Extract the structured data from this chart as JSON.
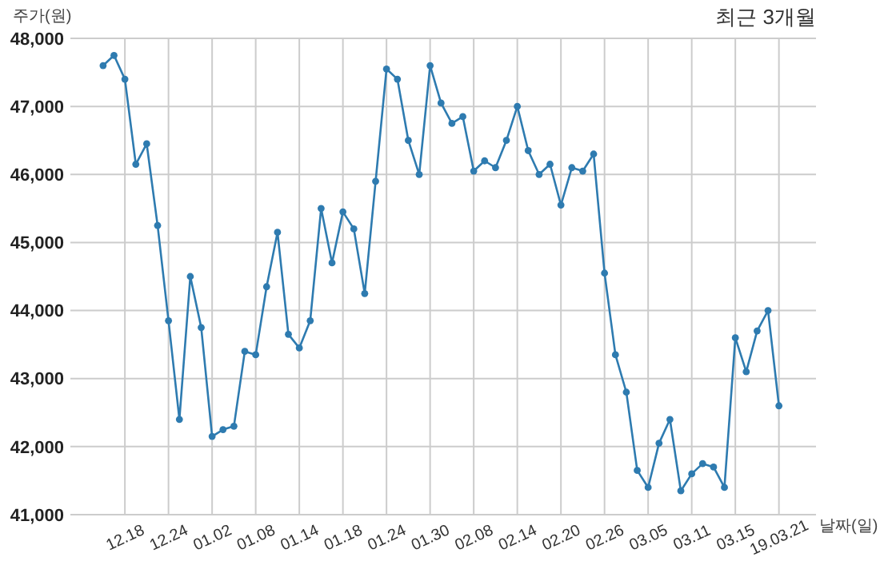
{
  "chart_data": {
    "type": "line",
    "title": "최근 3개월",
    "ylabel": "주가(원)",
    "xlabel": "날짜(일)",
    "categories": [
      null,
      null,
      "12.18",
      null,
      null,
      null,
      "12.24",
      null,
      null,
      null,
      "01.02",
      null,
      null,
      null,
      "01.08",
      null,
      null,
      null,
      "01.14",
      null,
      null,
      null,
      "01.18",
      null,
      null,
      null,
      "01.24",
      null,
      null,
      null,
      "01.30",
      null,
      null,
      null,
      "02.08",
      null,
      null,
      null,
      "02.14",
      null,
      null,
      null,
      "02.20",
      null,
      null,
      null,
      "02.26",
      null,
      null,
      null,
      "03.05",
      null,
      null,
      null,
      "03.11",
      null,
      null,
      null,
      "03.15",
      null,
      null,
      null,
      "19.03.21"
    ],
    "series": [
      {
        "color": "#2e7bb0",
        "values": [
          47600,
          47750,
          47400,
          46150,
          46450,
          45250,
          43850,
          42400,
          44500,
          43750,
          42150,
          42250,
          42300,
          43400,
          43350,
          44350,
          45150,
          43650,
          43450,
          43850,
          45500,
          44700,
          45450,
          45200,
          44250,
          45900,
          47550,
          47400,
          46500,
          46000,
          47600,
          47050,
          46750,
          46850,
          46050,
          46200,
          46100,
          46500,
          47000,
          46350,
          46000,
          46150,
          45550,
          46100,
          46050,
          46300,
          44550,
          43350,
          42800,
          41650,
          41400,
          42050,
          42400,
          41350,
          41600,
          41750,
          41700,
          41400,
          43600,
          43100,
          43700,
          44000,
          42600
        ]
      }
    ],
    "ylim": [
      41000,
      48000
    ],
    "yticks": [
      {
        "value": 41000,
        "label": "41,000"
      },
      {
        "value": 42000,
        "label": "42,000"
      },
      {
        "value": 43000,
        "label": "43,000"
      },
      {
        "value": 44000,
        "label": "44,000"
      },
      {
        "value": 45000,
        "label": "45,000"
      },
      {
        "value": 46000,
        "label": "46,000"
      },
      {
        "value": 47000,
        "label": "47,000"
      },
      {
        "value": 48000,
        "label": "48,000"
      }
    ],
    "grid": true,
    "marker": "circle",
    "line_style": "solid"
  }
}
